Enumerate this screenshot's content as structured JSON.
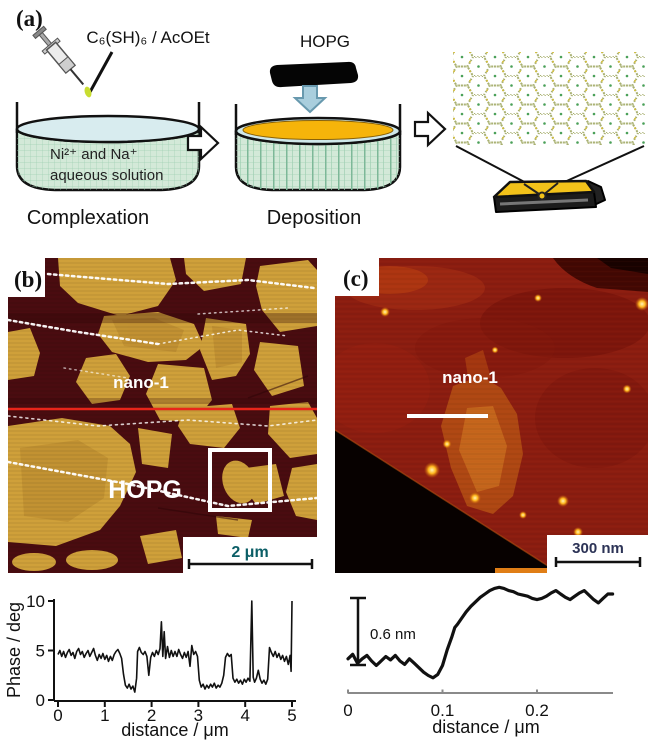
{
  "panel_a": {
    "label": "(a)",
    "reagent": "C₆(SH)₆ / AcOEt",
    "hopg_label": "HOPG",
    "solution_line1": "Ni²⁺ and Na⁺",
    "solution_line2": "aqueous solution",
    "step1_caption": "Complexation",
    "step2_caption": "Deposition"
  },
  "panel_b": {
    "label": "(b)",
    "film_label": "nano-1",
    "substrate_label": "HOPG",
    "scale_bar": "2 μm"
  },
  "panel_c": {
    "label": "(c)",
    "film_label": "nano-1",
    "scale_bar": "300 nm"
  },
  "colors": {
    "profile_line_red": "#e8251a",
    "roi_box_white": "#ffffff",
    "film_gold": "#cfa03a",
    "hopg_maroon": "#4a0c10",
    "panel_c_red": "#8c1d10",
    "scalebar_text_b": "#0b5e66",
    "scalebar_text_c": "#2c3356"
  },
  "chart_data": [
    {
      "type": "line",
      "xlabel": "distance / μm",
      "ylabel": "Phase / deg",
      "xlim": [
        0,
        5
      ],
      "ylim": [
        0,
        10
      ],
      "xticks": [
        0,
        1,
        2,
        3,
        4,
        5
      ],
      "yticks": [
        0,
        5,
        10
      ],
      "grid": false,
      "x": [
        0.0,
        0.04,
        0.08,
        0.12,
        0.16,
        0.2,
        0.24,
        0.28,
        0.32,
        0.36,
        0.4,
        0.44,
        0.48,
        0.52,
        0.56,
        0.6,
        0.64,
        0.68,
        0.72,
        0.76,
        0.8,
        0.84,
        0.88,
        0.92,
        0.96,
        1.0,
        1.04,
        1.08,
        1.12,
        1.16,
        1.2,
        1.24,
        1.28,
        1.32,
        1.36,
        1.4,
        1.44,
        1.48,
        1.52,
        1.56,
        1.6,
        1.64,
        1.68,
        1.7,
        1.74,
        1.78,
        1.82,
        1.86,
        1.9,
        1.94,
        1.98,
        2.02,
        2.06,
        2.1,
        2.14,
        2.18,
        2.21,
        2.24,
        2.27,
        2.3,
        2.34,
        2.38,
        2.42,
        2.46,
        2.5,
        2.54,
        2.58,
        2.62,
        2.66,
        2.7,
        2.74,
        2.78,
        2.82,
        2.86,
        2.9,
        2.94,
        2.98,
        3.02,
        3.06,
        3.1,
        3.14,
        3.18,
        3.22,
        3.26,
        3.3,
        3.34,
        3.38,
        3.42,
        3.46,
        3.5,
        3.54,
        3.58,
        3.62,
        3.66,
        3.7,
        3.74,
        3.78,
        3.82,
        3.86,
        3.9,
        3.94,
        3.98,
        4.02,
        4.06,
        4.1,
        4.14,
        4.17,
        4.2,
        4.24,
        4.28,
        4.32,
        4.36,
        4.4,
        4.44,
        4.48,
        4.52,
        4.56,
        4.6,
        4.64,
        4.68,
        4.72,
        4.76,
        4.8,
        4.84,
        4.88,
        4.92,
        4.96,
        4.98,
        5.0
      ],
      "y": [
        4.6,
        5.0,
        4.4,
        4.9,
        4.3,
        4.8,
        5.1,
        4.5,
        4.8,
        4.2,
        4.9,
        5.2,
        4.6,
        4.9,
        4.3,
        4.7,
        5.0,
        4.4,
        4.8,
        5.2,
        4.5,
        4.0,
        4.6,
        4.2,
        4.7,
        4.1,
        4.5,
        3.9,
        4.4,
        4.0,
        4.6,
        4.9,
        5.1,
        4.7,
        4.2,
        2.6,
        1.5,
        1.2,
        1.6,
        1.1,
        1.4,
        0.8,
        2.2,
        4.9,
        5.3,
        4.8,
        4.6,
        4.9,
        4.4,
        2.5,
        4.3,
        4.8,
        4.4,
        5.0,
        4.6,
        5.2,
        7.9,
        4.4,
        6.9,
        4.2,
        5.4,
        4.3,
        5.0,
        4.4,
        4.9,
        4.4,
        5.1,
        4.6,
        4.2,
        4.8,
        4.3,
        4.9,
        3.4,
        5.5,
        4.6,
        4.9,
        4.4,
        2.0,
        1.3,
        1.6,
        1.1,
        1.5,
        1.2,
        1.6,
        1.3,
        1.7,
        1.2,
        1.5,
        1.3,
        1.7,
        2.5,
        4.3,
        4.7,
        4.4,
        4.6,
        2.2,
        1.8,
        2.1,
        1.7,
        2.0,
        1.6,
        2.1,
        1.8,
        2.2,
        1.9,
        10.0,
        2.3,
        1.8,
        2.2,
        3.0,
        2.1,
        1.7,
        2.0,
        1.6,
        2.1,
        5.3,
        4.8,
        4.4,
        4.9,
        4.3,
        4.7,
        4.1,
        4.5,
        3.9,
        4.4,
        3.6,
        4.5,
        2.9,
        10.0
      ]
    },
    {
      "type": "line",
      "xlabel": "distance / μm",
      "annotation": "0.6 nm",
      "xticks": [
        0,
        0.1,
        0.2
      ],
      "xtick_labels": [
        "0",
        "0.1",
        "0.2"
      ],
      "xlim": [
        0,
        0.28
      ],
      "step_height_nm": 0.6,
      "x": [
        0.0,
        0.005,
        0.01,
        0.015,
        0.02,
        0.025,
        0.03,
        0.035,
        0.04,
        0.045,
        0.05,
        0.055,
        0.06,
        0.065,
        0.07,
        0.075,
        0.08,
        0.085,
        0.09,
        0.095,
        0.1,
        0.105,
        0.11,
        0.113,
        0.116,
        0.12,
        0.125,
        0.13,
        0.135,
        0.14,
        0.145,
        0.15,
        0.155,
        0.16,
        0.165,
        0.17,
        0.175,
        0.18,
        0.185,
        0.19,
        0.195,
        0.2,
        0.205,
        0.21,
        0.215,
        0.22,
        0.225,
        0.23,
        0.235,
        0.24,
        0.245,
        0.25,
        0.255,
        0.26,
        0.265,
        0.27,
        0.275,
        0.28
      ],
      "y_nm": [
        0.02,
        0.06,
        -0.02,
        0.02,
        0.05,
        0.0,
        -0.04,
        0.0,
        0.04,
        0.01,
        0.05,
        0.0,
        -0.03,
        0.02,
        -0.02,
        -0.06,
        -0.1,
        -0.13,
        -0.15,
        -0.12,
        -0.04,
        0.1,
        0.22,
        0.3,
        0.33,
        0.38,
        0.44,
        0.49,
        0.53,
        0.57,
        0.6,
        0.63,
        0.65,
        0.66,
        0.65,
        0.63,
        0.62,
        0.6,
        0.59,
        0.58,
        0.56,
        0.55,
        0.56,
        0.58,
        0.61,
        0.63,
        0.6,
        0.57,
        0.55,
        0.58,
        0.61,
        0.63,
        0.59,
        0.55,
        0.52,
        0.56,
        0.6,
        0.6
      ]
    }
  ]
}
